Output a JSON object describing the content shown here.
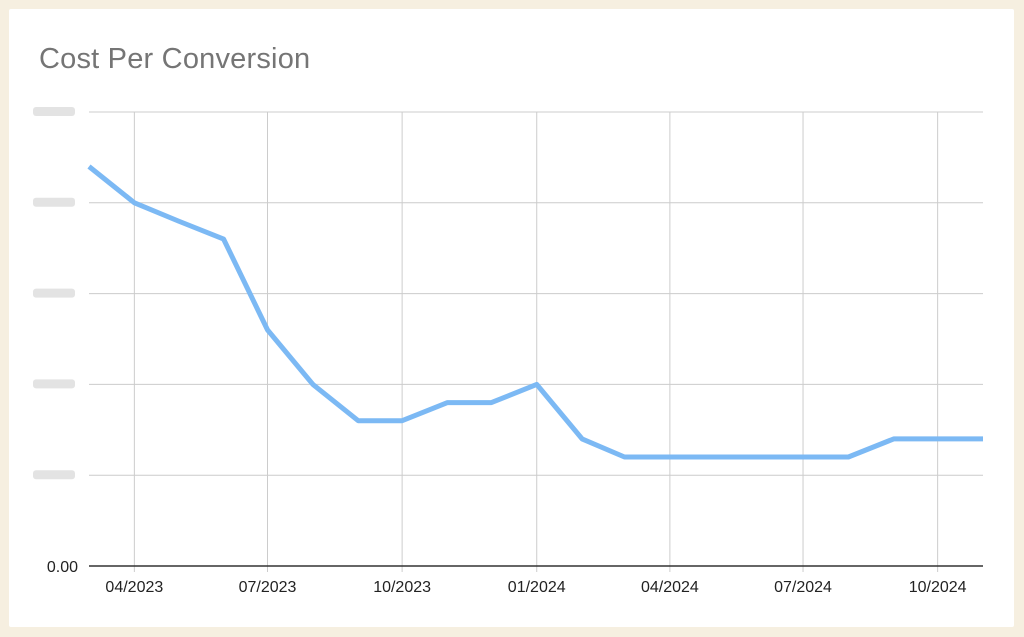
{
  "chart_data": {
    "type": "line",
    "title": "Cost Per Conversion",
    "xlabel": "",
    "ylabel": "",
    "x_ticks": [
      "04/2023",
      "07/2023",
      "10/2023",
      "01/2024",
      "04/2024",
      "07/2024",
      "10/2024"
    ],
    "y_ticks": [
      "0.00",
      "",
      "",
      "",
      "",
      ""
    ],
    "ylim": [
      0,
      5
    ],
    "grid": true,
    "legend": "none",
    "series": [
      {
        "color": "#7cb9f4",
        "x": [
          "2023-03-01",
          "2023-04-01",
          "2023-05-01",
          "2023-06-01",
          "2023-07-01",
          "2023-08-01",
          "2023-09-01",
          "2023-10-01",
          "2023-11-01",
          "2023-12-01",
          "2024-01-01",
          "2024-02-01",
          "2024-03-01",
          "2024-04-01",
          "2024-05-01",
          "2024-06-01",
          "2024-07-01",
          "2024-08-01",
          "2024-09-01",
          "2024-10-01",
          "2024-11-01"
        ],
        "values": [
          4.4,
          4.0,
          3.8,
          3.6,
          2.6,
          2.0,
          1.6,
          1.6,
          1.8,
          1.8,
          2.0,
          1.4,
          1.2,
          1.2,
          1.2,
          1.2,
          1.2,
          1.2,
          1.4,
          1.4,
          1.4
        ]
      }
    ]
  }
}
